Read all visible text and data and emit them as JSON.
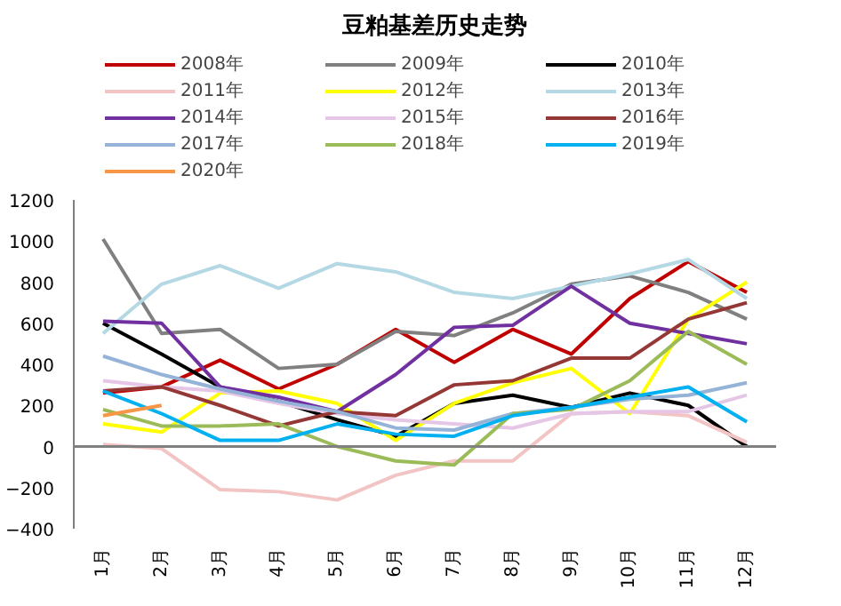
{
  "chart_data": {
    "type": "line",
    "title": "豆粕基差历史走势",
    "categories": [
      "1月",
      "2月",
      "3月",
      "4月",
      "5月",
      "6月",
      "7月",
      "8月",
      "9月",
      "10月",
      "11月",
      "12月"
    ],
    "ylim": [
      -400,
      1200
    ],
    "yticks": [
      -400,
      -200,
      0,
      200,
      400,
      600,
      800,
      1000,
      1200
    ],
    "grid": false,
    "legend": "top",
    "marker": "none",
    "line_style": "solid",
    "ref_lines": [
      {
        "axis": "y",
        "value": 0,
        "color": "#808080"
      }
    ],
    "series": [
      {
        "name": "2008年",
        "color": "#c00000",
        "values": [
          260,
          290,
          420,
          280,
          400,
          570,
          410,
          570,
          450,
          720,
          900,
          750
        ]
      },
      {
        "name": "2009年",
        "color": "#808080",
        "values": [
          1010,
          550,
          570,
          380,
          400,
          560,
          540,
          650,
          790,
          830,
          750,
          620
        ]
      },
      {
        "name": "2010年",
        "color": "#000000",
        "values": [
          600,
          450,
          290,
          220,
          130,
          50,
          210,
          250,
          190,
          260,
          200,
          0
        ]
      },
      {
        "name": "2011年",
        "color": "#f2c4c4",
        "values": [
          10,
          -10,
          -210,
          -220,
          -260,
          -140,
          -70,
          -70,
          160,
          170,
          150,
          20
        ]
      },
      {
        "name": "2012年",
        "color": "#ffff00",
        "values": [
          110,
          70,
          260,
          270,
          210,
          30,
          210,
          310,
          380,
          160,
          620,
          800
        ]
      },
      {
        "name": "2013年",
        "color": "#b4d8e4",
        "values": [
          550,
          790,
          880,
          770,
          890,
          850,
          750,
          720,
          780,
          840,
          910,
          720
        ]
      },
      {
        "name": "2014年",
        "color": "#7030a0",
        "values": [
          610,
          600,
          290,
          240,
          170,
          350,
          580,
          590,
          780,
          600,
          550,
          500
        ]
      },
      {
        "name": "2015年",
        "color": "#e6c6e6",
        "values": [
          320,
          290,
          270,
          210,
          160,
          130,
          110,
          90,
          160,
          170,
          170,
          250
        ]
      },
      {
        "name": "2016年",
        "color": "#953735",
        "values": [
          270,
          290,
          200,
          100,
          170,
          150,
          300,
          320,
          430,
          430,
          620,
          700
        ]
      },
      {
        "name": "2017年",
        "color": "#95b3d7",
        "values": [
          440,
          350,
          280,
          220,
          170,
          90,
          80,
          160,
          190,
          230,
          250,
          310
        ]
      },
      {
        "name": "2018年",
        "color": "#9bbb59",
        "values": [
          180,
          100,
          100,
          110,
          0,
          -70,
          -90,
          160,
          180,
          320,
          560,
          400
        ]
      },
      {
        "name": "2019年",
        "color": "#00b0f0",
        "values": [
          270,
          160,
          30,
          30,
          110,
          60,
          50,
          150,
          190,
          240,
          290,
          120
        ]
      },
      {
        "name": "2020年",
        "color": "#f79646",
        "values": [
          150,
          200,
          null,
          null,
          null,
          null,
          null,
          null,
          null,
          null,
          null,
          null
        ]
      }
    ]
  }
}
